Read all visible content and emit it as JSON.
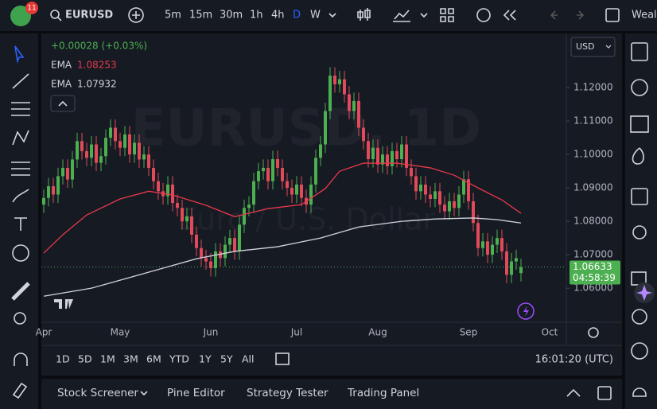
{
  "header": {
    "badge": "11",
    "symbol": "EURUSD",
    "intervals": [
      "5m",
      "15m",
      "30m",
      "1h",
      "4h",
      "D",
      "W"
    ],
    "active_interval": 5,
    "cut_text": "Weal"
  },
  "chart_data": {
    "type": "candlestick",
    "watermark": "EURUSD, 1D",
    "watermark_sub": "Euro / U.S. Dollar",
    "change": "+0.00028 (+0.03%)",
    "currency": "USD",
    "up_color": "#4caf50",
    "down_color": "#e04a5a",
    "grid": false,
    "categories": [
      "Apr",
      null,
      null,
      null,
      null,
      null,
      null,
      null,
      null,
      null,
      null,
      null,
      null,
      null,
      null,
      null,
      "May",
      null,
      null,
      null,
      null,
      null,
      null,
      null,
      null,
      null,
      null,
      null,
      null,
      null,
      null,
      null,
      null,
      null,
      null,
      "Jun",
      null,
      null,
      null,
      null,
      null,
      null,
      null,
      null,
      null,
      null,
      null,
      null,
      null,
      null,
      null,
      null,
      null,
      "Jul",
      null,
      null,
      null,
      null,
      null,
      null,
      null,
      null,
      null,
      null,
      null,
      null,
      null,
      null,
      null,
      null,
      "Aug",
      null,
      null,
      null,
      null,
      null,
      null,
      null,
      null,
      null,
      null,
      null,
      null,
      null,
      null,
      null,
      null,
      null,
      null,
      "Sep",
      null,
      null,
      null,
      null,
      null,
      null,
      null,
      null,
      null,
      null,
      null,
      null,
      null,
      null,
      null,
      null,
      "Oct",
      null,
      null,
      null
    ],
    "open": [
      1.085,
      1.087,
      1.0905,
      1.088,
      1.0935,
      1.096,
      1.0925,
      1.0985,
      1.104,
      1.101,
      1.099,
      1.103,
      1.0975,
      1.0995,
      1.105,
      1.108,
      1.104,
      1.102,
      1.106,
      1.1,
      1.1035,
      1.0985,
      1.1,
      1.096,
      1.092,
      1.089,
      1.0875,
      1.091,
      1.0855,
      1.084,
      1.08,
      1.0815,
      1.076,
      1.072,
      1.069,
      1.068,
      1.066,
      1.071,
      1.069,
      1.073,
      1.075,
      1.071,
      1.079,
      1.084,
      1.085,
      1.092,
      1.095,
      1.096,
      1.092,
      1.0986,
      1.096,
      1.092,
      1.09,
      1.088,
      1.091,
      1.087,
      1.085,
      1.091,
      1.099,
      1.103,
      1.113,
      1.1236,
      1.121,
      1.1225,
      1.118,
      1.113,
      1.116,
      1.108,
      1.104,
      1.0986,
      1.102,
      1.097,
      1.1,
      1.0965,
      1.101,
      1.0986,
      1.103,
      1.096,
      1.0935,
      1.089,
      1.091,
      1.088,
      1.0867,
      1.089,
      1.085,
      1.083,
      1.086,
      1.084,
      1.088,
      1.0926,
      1.086,
      1.0795,
      1.072,
      1.074,
      1.07,
      1.073,
      1.075,
      1.071,
      1.064,
      1.068,
      1.0645,
      null,
      null,
      null,
      null,
      null,
      null,
      null,
      null,
      null
    ],
    "high": [
      1.0895,
      1.093,
      1.093,
      1.096,
      1.0985,
      1.0985,
      1.101,
      1.1065,
      1.1065,
      1.1035,
      1.1055,
      1.1055,
      1.102,
      1.1075,
      1.1105,
      1.1105,
      1.1065,
      1.1085,
      1.1085,
      1.106,
      1.106,
      1.1025,
      1.1025,
      1.0985,
      1.0945,
      1.0915,
      1.0935,
      1.0935,
      1.088,
      1.0865,
      1.084,
      1.084,
      1.0785,
      1.0745,
      1.0715,
      1.0705,
      1.0735,
      1.0735,
      1.0755,
      1.0775,
      1.0775,
      1.0815,
      1.0865,
      1.0875,
      1.0945,
      1.0975,
      1.0985,
      1.0985,
      1.1011,
      1.1011,
      1.0985,
      1.0945,
      1.0925,
      1.0935,
      1.0935,
      1.0895,
      1.0935,
      1.1015,
      1.1055,
      1.1155,
      1.1261,
      1.1261,
      1.125,
      1.125,
      1.1205,
      1.1185,
      1.1185,
      1.1105,
      1.1065,
      1.1045,
      1.1045,
      1.1025,
      1.1025,
      1.1035,
      1.1035,
      1.1055,
      1.1055,
      1.0985,
      1.096,
      1.0935,
      1.0935,
      1.0905,
      1.0915,
      1.0915,
      1.0875,
      1.0885,
      1.0885,
      1.0905,
      1.0951,
      1.0951,
      1.0885,
      1.082,
      1.0765,
      1.0765,
      1.0755,
      1.0775,
      1.0775,
      1.0735,
      1.0705,
      1.0715,
      1.0688,
      null,
      null,
      null,
      null,
      null,
      null,
      null,
      null,
      null
    ],
    "low": [
      1.0825,
      1.0845,
      1.0855,
      1.0855,
      1.091,
      1.09,
      1.09,
      1.096,
      1.0985,
      1.0965,
      1.0965,
      1.095,
      1.095,
      1.097,
      1.1025,
      1.1015,
      1.0995,
      1.0995,
      1.0975,
      1.0975,
      1.096,
      1.096,
      1.0935,
      1.0895,
      1.0865,
      1.085,
      1.085,
      1.083,
      1.0815,
      1.0775,
      1.0775,
      1.0735,
      1.0695,
      1.0665,
      1.0655,
      1.0635,
      1.0635,
      1.0665,
      1.0665,
      1.0705,
      1.0685,
      1.0685,
      1.0765,
      1.0815,
      1.0825,
      1.0895,
      1.0925,
      1.0895,
      1.0895,
      1.0935,
      1.0895,
      1.0875,
      1.0855,
      1.0855,
      1.0845,
      1.0825,
      1.0825,
      1.0885,
      1.0965,
      1.1005,
      1.1105,
      1.1185,
      1.1185,
      1.1155,
      1.1105,
      1.1105,
      1.1055,
      1.1015,
      1.0961,
      1.0961,
      1.0945,
      1.0945,
      1.094,
      1.094,
      1.0961,
      1.0961,
      1.0935,
      1.091,
      1.0865,
      1.0865,
      1.0855,
      1.0842,
      1.0842,
      1.0825,
      1.0805,
      1.0805,
      1.0815,
      1.0815,
      1.0855,
      1.0835,
      1.077,
      1.0695,
      1.0695,
      1.0675,
      1.0675,
      1.0705,
      1.0685,
      1.0615,
      1.0615,
      1.0655,
      1.062,
      null,
      null,
      null,
      null,
      null,
      null,
      null,
      null,
      null
    ],
    "close": [
      1.087,
      1.0905,
      1.088,
      1.0935,
      1.096,
      1.0925,
      1.0985,
      1.104,
      1.101,
      1.099,
      1.103,
      1.0975,
      1.0995,
      1.105,
      1.108,
      1.104,
      1.102,
      1.106,
      1.1,
      1.1035,
      1.0985,
      1.1,
      1.096,
      1.092,
      1.089,
      1.0875,
      1.091,
      1.0855,
      1.084,
      1.08,
      1.0815,
      1.076,
      1.072,
      1.069,
      1.068,
      1.066,
      1.071,
      1.069,
      1.073,
      1.075,
      1.071,
      1.079,
      1.084,
      1.085,
      1.092,
      1.095,
      1.096,
      1.092,
      1.0986,
      1.096,
      1.092,
      1.09,
      1.088,
      1.091,
      1.087,
      1.085,
      1.091,
      1.099,
      1.103,
      1.113,
      1.1236,
      1.121,
      1.1225,
      1.118,
      1.113,
      1.116,
      1.108,
      1.104,
      1.0986,
      1.102,
      1.097,
      1.1,
      1.0965,
      1.101,
      1.0986,
      1.103,
      1.096,
      1.0935,
      1.089,
      1.091,
      1.088,
      1.0867,
      1.089,
      1.085,
      1.083,
      1.086,
      1.084,
      1.088,
      1.0926,
      1.086,
      1.0795,
      1.072,
      1.074,
      1.07,
      1.073,
      1.075,
      1.071,
      1.064,
      1.068,
      1.069,
      1.0663,
      null,
      null,
      null,
      null,
      null,
      null,
      null,
      null,
      null
    ],
    "lines": [
      {
        "name": "EMA",
        "legend_value": "1.08253",
        "color": "#e8394a",
        "x": [
          0,
          4,
          9,
          16,
          22,
          27,
          34,
          40,
          47,
          54,
          59,
          62,
          67,
          74,
          81,
          86,
          91,
          96,
          100
        ],
        "values": [
          1.0705,
          1.076,
          1.0819,
          1.0867,
          1.089,
          1.0879,
          1.0848,
          1.0814,
          1.0838,
          1.085,
          1.0898,
          1.095,
          1.0974,
          1.0974,
          1.096,
          1.0938,
          1.09,
          1.0864,
          1.0824
        ]
      },
      {
        "name": "EMA",
        "legend_value": "1.07932",
        "color": "#d1d4dc",
        "x": [
          0,
          10,
          16,
          25,
          32,
          40,
          49,
          58,
          66,
          75,
          82,
          90,
          95,
          100
        ],
        "values": [
          1.0576,
          1.06,
          1.0624,
          1.066,
          1.0688,
          1.071,
          1.0724,
          1.075,
          1.0783,
          1.08,
          1.0807,
          1.081,
          1.0805,
          1.0795
        ]
      }
    ],
    "ylim": [
      1.0498,
      1.1355
    ],
    "yticks": [
      {
        "value": 1.06,
        "label": "1.06000"
      },
      {
        "value": 1.07,
        "label": "1.07000"
      },
      {
        "value": 1.08,
        "label": "1.08000"
      },
      {
        "value": 1.09,
        "label": "1.09000"
      },
      {
        "value": 1.1,
        "label": "1.10000"
      },
      {
        "value": 1.11,
        "label": "1.11000"
      },
      {
        "value": 1.12,
        "label": "1.12000"
      }
    ],
    "last_price": {
      "value": 1.06633,
      "label": "1.06633"
    },
    "countdown": "04:58:39"
  },
  "range_bar": {
    "ranges": [
      "1D",
      "5D",
      "1M",
      "3M",
      "6M",
      "YTD",
      "1Y",
      "5Y",
      "All"
    ],
    "clock": "16:01:20 (UTC)"
  },
  "bottom_tabs": [
    "Stock Screener",
    "Pine Editor",
    "Strategy Tester",
    "Trading Panel"
  ]
}
